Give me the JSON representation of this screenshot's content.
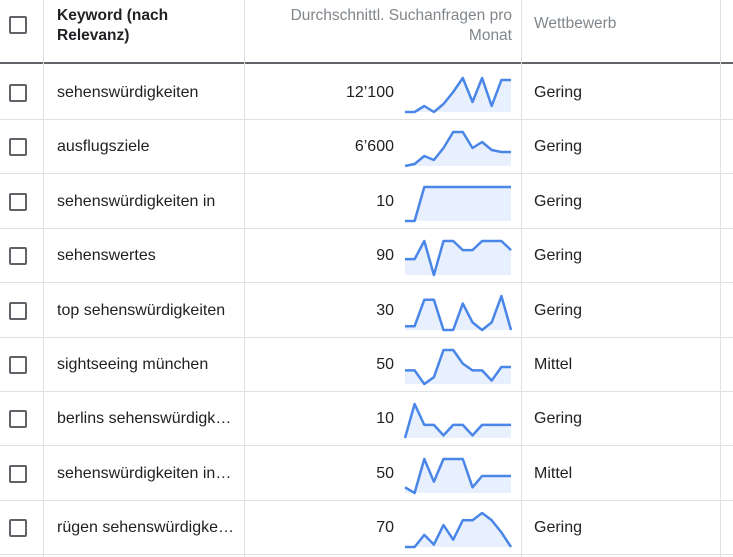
{
  "header": {
    "keyword_label": "Keyword (nach Relevanz)",
    "avg_label": "Durchschnittl. Suchanfragen pro Monat",
    "competition_label": "Wettbewerb"
  },
  "colors": {
    "line": "#4a86e8",
    "fill": "#e8f0fe"
  },
  "rows": [
    {
      "keyword": "sehenswürdigkeiten",
      "avg": "12’100",
      "competition": "Gering",
      "trend": [
        1,
        1,
        4,
        1,
        5,
        11,
        18,
        6,
        18,
        4,
        17,
        17
      ]
    },
    {
      "keyword": "ausflugsziele",
      "avg": "6’600",
      "competition": "Gering",
      "trend": [
        3,
        4,
        8,
        6,
        12,
        20,
        20,
        12,
        15,
        11,
        10,
        10
      ]
    },
    {
      "keyword": "sehenswürdigkeiten in",
      "avg": "10",
      "competition": "Gering",
      "trend": [
        2,
        2,
        9,
        9,
        9,
        9,
        9,
        9,
        9,
        9,
        9,
        9
      ]
    },
    {
      "keyword": "sehenswertes",
      "avg": "90",
      "competition": "Gering",
      "trend": [
        12,
        12,
        20,
        5,
        20,
        20,
        16,
        16,
        20,
        20,
        20,
        16
      ]
    },
    {
      "keyword": "top sehenswürdigkeiten",
      "avg": "30",
      "competition": "Gering",
      "trend": [
        2,
        2,
        9,
        9,
        1,
        1,
        8,
        3,
        1,
        3,
        10,
        1
      ]
    },
    {
      "keyword": "sightseeing münchen",
      "avg": "50",
      "competition": "Mittel",
      "trend": [
        6,
        6,
        2,
        4,
        12,
        12,
        8,
        6,
        6,
        3,
        7,
        7
      ]
    },
    {
      "keyword": "berlins sehenswürdigkeiten",
      "avg": "10",
      "competition": "Gering",
      "trend": [
        1,
        14,
        6,
        6,
        2,
        6,
        6,
        2,
        6,
        6,
        6,
        6
      ]
    },
    {
      "keyword": "sehenswürdigkeiten in berlin",
      "avg": "50",
      "competition": "Mittel",
      "trend": [
        4,
        2,
        14,
        6,
        14,
        14,
        14,
        4,
        8,
        8,
        8,
        8
      ]
    },
    {
      "keyword": "rügen sehenswürdigkeiten",
      "avg": "70",
      "competition": "Gering",
      "trend": [
        1,
        1,
        6,
        2,
        10,
        4,
        12,
        12,
        15,
        12,
        7,
        1
      ]
    }
  ]
}
